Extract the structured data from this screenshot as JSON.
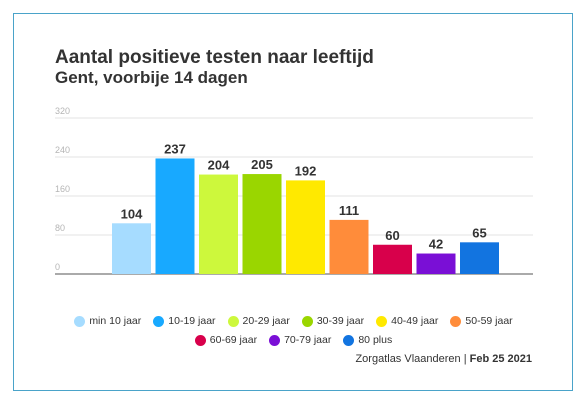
{
  "title": "Aantal positieve testen naar leeftijd",
  "subtitle": "Gent, voorbije 14 dagen",
  "source": {
    "name": "Zorgatlas Vlaanderen",
    "separator": "|",
    "date": "Feb 25 2021"
  },
  "chart_data": {
    "type": "bar",
    "title": "Aantal positieve testen naar leeftijd",
    "subtitle": "Gent, voorbije 14 dagen",
    "categories": [
      "min 10 jaar",
      "10-19 jaar",
      "20-29 jaar",
      "30-39 jaar",
      "40-49 jaar",
      "50-59 jaar",
      "60-69 jaar",
      "70-79 jaar",
      "80 plus"
    ],
    "values": [
      104,
      237,
      204,
      205,
      192,
      111,
      60,
      42,
      65
    ],
    "colors": [
      "#a6dcff",
      "#18a9ff",
      "#cdf83c",
      "#9ad600",
      "#ffe900",
      "#ff8c3a",
      "#d8004b",
      "#7a0fd6",
      "#1274e0"
    ],
    "ylim": [
      0,
      320
    ],
    "yticks": [
      0,
      80,
      160,
      240,
      320
    ],
    "grid": true,
    "legend_position": "bottom",
    "data_labels": true
  }
}
